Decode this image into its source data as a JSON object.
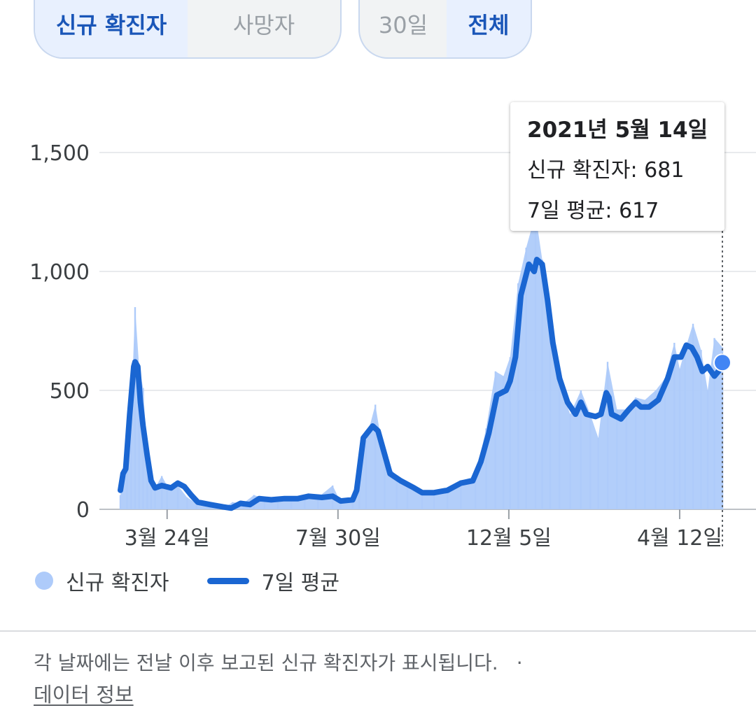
{
  "metric_toggle": {
    "options": [
      "신규 확진자",
      "사망자"
    ],
    "selected": 0
  },
  "range_toggle": {
    "options": [
      "30일",
      "전체"
    ],
    "selected": 1
  },
  "tooltip": {
    "date": "2021년 5월 14일",
    "new_cases": "신규 확진자: 681",
    "avg": "7일 평균: 617"
  },
  "legend": {
    "bars": "신규 확진자",
    "line": "7일 평균"
  },
  "footnote": "각 날짜에는 전날 이후 보고된 신규 확진자가 표시됩니다.",
  "footnote_sep": "·",
  "data_link": "데이터 정보",
  "colors": {
    "bar": "#aecbfa",
    "line": "#1a66d2",
    "active_text": "#1a56b8"
  },
  "chart_data": {
    "type": "bar",
    "xlabel": "",
    "ylabel": "",
    "ylim": [
      0,
      1650
    ],
    "yticks": [
      0,
      500,
      1000,
      1500
    ],
    "ytick_labels": [
      "0",
      "500",
      "1,000",
      "1,500"
    ],
    "xticks": [
      {
        "label": "3월 24일",
        "date": "2020-03-24"
      },
      {
        "label": "7월 30일",
        "date": "2020-07-30"
      },
      {
        "label": "12월 5일",
        "date": "2020-12-05"
      },
      {
        "label": "4월 12일",
        "date": "2021-04-12"
      }
    ],
    "x_range": [
      "2020-02-18",
      "2021-05-14"
    ],
    "grid": true,
    "legend_position": "bottom-left",
    "series": [
      {
        "name": "신규 확진자",
        "type": "bar",
        "points": [
          [
            "2020-02-18",
            60
          ],
          [
            "2020-02-23",
            170
          ],
          [
            "2020-02-26",
            400
          ],
          [
            "2020-02-29",
            850
          ],
          [
            "2020-03-03",
            600
          ],
          [
            "2020-03-06",
            510
          ],
          [
            "2020-03-09",
            250
          ],
          [
            "2020-03-12",
            120
          ],
          [
            "2020-03-15",
            90
          ],
          [
            "2020-03-20",
            140
          ],
          [
            "2020-03-24",
            100
          ],
          [
            "2020-04-01",
            100
          ],
          [
            "2020-04-08",
            50
          ],
          [
            "2020-04-15",
            25
          ],
          [
            "2020-04-25",
            10
          ],
          [
            "2020-05-05",
            5
          ],
          [
            "2020-05-12",
            30
          ],
          [
            "2020-05-20",
            25
          ],
          [
            "2020-05-28",
            60
          ],
          [
            "2020-06-05",
            45
          ],
          [
            "2020-06-15",
            45
          ],
          [
            "2020-06-25",
            45
          ],
          [
            "2020-07-05",
            60
          ],
          [
            "2020-07-15",
            50
          ],
          [
            "2020-07-26",
            100
          ],
          [
            "2020-08-01",
            30
          ],
          [
            "2020-08-10",
            35
          ],
          [
            "2020-08-15",
            160
          ],
          [
            "2020-08-20",
            290
          ],
          [
            "2020-08-27",
            440
          ],
          [
            "2020-09-03",
            200
          ],
          [
            "2020-09-12",
            140
          ],
          [
            "2020-09-20",
            110
          ],
          [
            "2020-10-01",
            70
          ],
          [
            "2020-10-10",
            60
          ],
          [
            "2020-10-20",
            80
          ],
          [
            "2020-10-30",
            120
          ],
          [
            "2020-11-10",
            140
          ],
          [
            "2020-11-18",
            340
          ],
          [
            "2020-11-25",
            580
          ],
          [
            "2020-12-01",
            560
          ],
          [
            "2020-12-06",
            640
          ],
          [
            "2020-12-12",
            950
          ],
          [
            "2020-12-18",
            1100
          ],
          [
            "2020-12-25",
            1240
          ],
          [
            "2020-12-30",
            1050
          ],
          [
            "2021-01-05",
            840
          ],
          [
            "2021-01-12",
            520
          ],
          [
            "2021-01-20",
            400
          ],
          [
            "2021-01-28",
            500
          ],
          [
            "2021-02-04",
            400
          ],
          [
            "2021-02-10",
            300
          ],
          [
            "2021-02-17",
            620
          ],
          [
            "2021-02-24",
            420
          ],
          [
            "2021-03-03",
            420
          ],
          [
            "2021-03-10",
            470
          ],
          [
            "2021-03-17",
            460
          ],
          [
            "2021-03-25",
            500
          ],
          [
            "2021-04-01",
            550
          ],
          [
            "2021-04-08",
            700
          ],
          [
            "2021-04-12",
            590
          ],
          [
            "2021-04-16",
            670
          ],
          [
            "2021-04-22",
            780
          ],
          [
            "2021-04-28",
            670
          ],
          [
            "2021-05-03",
            500
          ],
          [
            "2021-05-08",
            720
          ],
          [
            "2021-05-14",
            681
          ]
        ]
      },
      {
        "name": "7일 평균",
        "type": "line",
        "points": [
          [
            "2020-02-18",
            80
          ],
          [
            "2020-02-20",
            150
          ],
          [
            "2020-02-22",
            170
          ],
          [
            "2020-02-25",
            400
          ],
          [
            "2020-02-28",
            600
          ],
          [
            "2020-02-29",
            620
          ],
          [
            "2020-03-02",
            600
          ],
          [
            "2020-03-04",
            450
          ],
          [
            "2020-03-06",
            350
          ],
          [
            "2020-03-09",
            230
          ],
          [
            "2020-03-12",
            120
          ],
          [
            "2020-03-15",
            90
          ],
          [
            "2020-03-20",
            100
          ],
          [
            "2020-03-27",
            90
          ],
          [
            "2020-04-01",
            110
          ],
          [
            "2020-04-06",
            95
          ],
          [
            "2020-04-11",
            60
          ],
          [
            "2020-04-16",
            30
          ],
          [
            "2020-04-25",
            20
          ],
          [
            "2020-05-05",
            10
          ],
          [
            "2020-05-11",
            5
          ],
          [
            "2020-05-18",
            25
          ],
          [
            "2020-05-25",
            20
          ],
          [
            "2020-06-01",
            45
          ],
          [
            "2020-06-10",
            40
          ],
          [
            "2020-06-20",
            45
          ],
          [
            "2020-06-30",
            45
          ],
          [
            "2020-07-08",
            55
          ],
          [
            "2020-07-18",
            50
          ],
          [
            "2020-07-26",
            55
          ],
          [
            "2020-08-01",
            35
          ],
          [
            "2020-08-10",
            40
          ],
          [
            "2020-08-13",
            80
          ],
          [
            "2020-08-18",
            300
          ],
          [
            "2020-08-25",
            350
          ],
          [
            "2020-08-29",
            330
          ],
          [
            "2020-09-03",
            230
          ],
          [
            "2020-09-07",
            150
          ],
          [
            "2020-09-15",
            120
          ],
          [
            "2020-09-25",
            90
          ],
          [
            "2020-10-01",
            70
          ],
          [
            "2020-10-10",
            70
          ],
          [
            "2020-10-20",
            80
          ],
          [
            "2020-10-30",
            110
          ],
          [
            "2020-11-08",
            120
          ],
          [
            "2020-11-14",
            200
          ],
          [
            "2020-11-20",
            320
          ],
          [
            "2020-11-26",
            480
          ],
          [
            "2020-12-03",
            500
          ],
          [
            "2020-12-06",
            540
          ],
          [
            "2020-12-10",
            640
          ],
          [
            "2020-12-14",
            900
          ],
          [
            "2020-12-20",
            1030
          ],
          [
            "2020-12-24",
            1000
          ],
          [
            "2020-12-26",
            1050
          ],
          [
            "2020-12-30",
            1030
          ],
          [
            "2021-01-03",
            880
          ],
          [
            "2021-01-07",
            700
          ],
          [
            "2021-01-12",
            550
          ],
          [
            "2021-01-18",
            450
          ],
          [
            "2021-01-24",
            400
          ],
          [
            "2021-01-28",
            450
          ],
          [
            "2021-02-01",
            400
          ],
          [
            "2021-02-08",
            390
          ],
          [
            "2021-02-12",
            400
          ],
          [
            "2021-02-16",
            490
          ],
          [
            "2021-02-18",
            470
          ],
          [
            "2021-02-20",
            400
          ],
          [
            "2021-02-27",
            380
          ],
          [
            "2021-03-05",
            420
          ],
          [
            "2021-03-10",
            450
          ],
          [
            "2021-03-14",
            430
          ],
          [
            "2021-03-20",
            430
          ],
          [
            "2021-03-27",
            460
          ],
          [
            "2021-04-03",
            550
          ],
          [
            "2021-04-08",
            640
          ],
          [
            "2021-04-13",
            640
          ],
          [
            "2021-04-17",
            690
          ],
          [
            "2021-04-21",
            680
          ],
          [
            "2021-04-25",
            640
          ],
          [
            "2021-04-29",
            580
          ],
          [
            "2021-05-03",
            600
          ],
          [
            "2021-05-08",
            560
          ],
          [
            "2021-05-11",
            580
          ],
          [
            "2021-05-14",
            617
          ]
        ]
      }
    ],
    "highlight": {
      "date": "2021-05-14",
      "value": 617
    }
  }
}
